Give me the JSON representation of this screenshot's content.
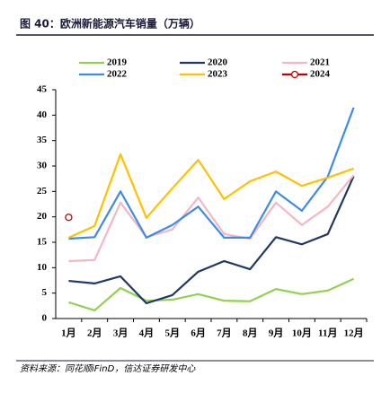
{
  "chart_data": {
    "type": "line",
    "title": "图 40：欧洲新能源汽车销量（万辆）",
    "source": "资料来源：同花顺iFinD，信达证券研发中心",
    "categories": [
      "1月",
      "2月",
      "3月",
      "4月",
      "5月",
      "6月",
      "7月",
      "8月",
      "9月",
      "10月",
      "11月",
      "12月"
    ],
    "series": [
      {
        "name": "2019",
        "color": "#92d050",
        "values": [
          3.2,
          1.6,
          6.0,
          3.5,
          3.7,
          4.8,
          3.5,
          3.4,
          5.8,
          4.8,
          5.5,
          7.8
        ]
      },
      {
        "name": "2020",
        "color": "#1f3864",
        "values": [
          7.4,
          6.9,
          8.3,
          3.0,
          4.6,
          9.2,
          11.3,
          9.7,
          16.0,
          14.6,
          16.6,
          28.0
        ]
      },
      {
        "name": "2021",
        "color": "#f4b6c2",
        "values": [
          11.3,
          11.5,
          22.8,
          16.0,
          17.5,
          23.8,
          16.6,
          15.7,
          22.8,
          18.4,
          22.0,
          28.2
        ]
      },
      {
        "name": "2022",
        "color": "#3c8ce7",
        "values": [
          15.7,
          16.0,
          25.0,
          15.9,
          18.4,
          22.0,
          15.9,
          15.9,
          25.0,
          21.2,
          27.9,
          41.5
        ]
      },
      {
        "name": "2023",
        "color": "#ffc000",
        "values": [
          15.9,
          18.2,
          32.3,
          19.8,
          25.6,
          31.2,
          23.5,
          27.0,
          28.9,
          26.1,
          27.7,
          29.5
        ]
      },
      {
        "name": "2024",
        "color": "#c00000",
        "marker": "circle",
        "values": [
          19.9,
          null,
          null,
          null,
          null,
          null,
          null,
          null,
          null,
          null,
          null,
          null
        ]
      }
    ],
    "ylim": [
      0,
      45
    ],
    "yticks": [
      0,
      5,
      10,
      15,
      20,
      25,
      30,
      35,
      40,
      45
    ]
  }
}
